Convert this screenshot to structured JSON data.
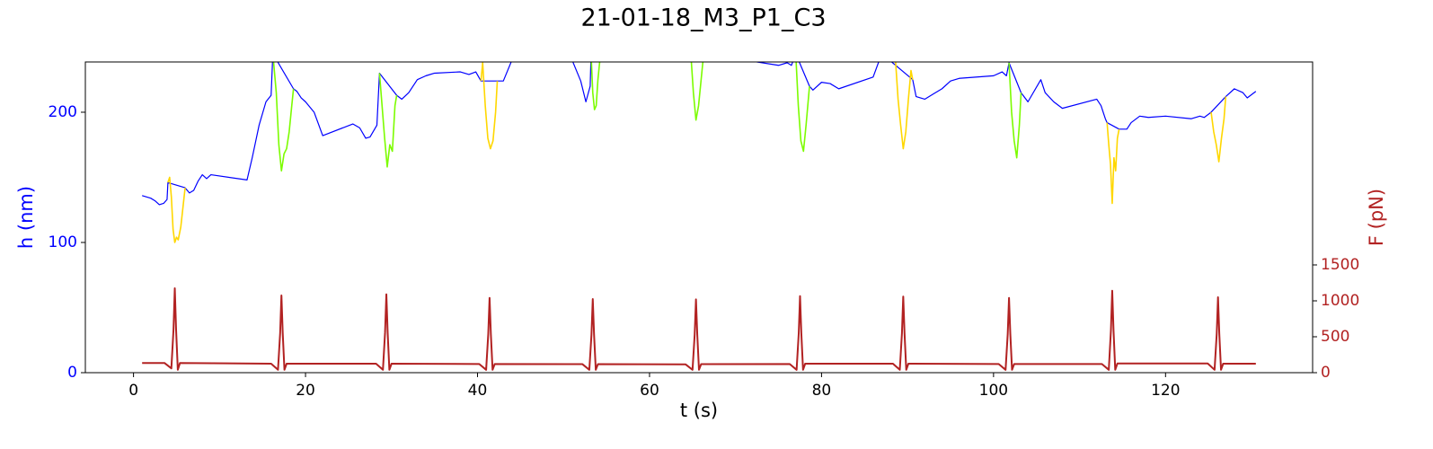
{
  "chart_data": {
    "type": "line",
    "title": "21-01-18_M3_P1_C3",
    "xlabel": "t (s)",
    "ylabel": "h (nm)",
    "y2label": "F (pN)",
    "ylabel_color": "#0000ff",
    "y2label_color": "#b22222",
    "xlim": [
      -5.6,
      137.1
    ],
    "ylim": [
      0,
      238.6
    ],
    "y2lim": [
      0,
      4325
    ],
    "xticks": [
      0,
      20,
      40,
      60,
      80,
      100,
      120
    ],
    "yticks": [
      0,
      100,
      200
    ],
    "y2ticks": [
      0,
      500,
      1000,
      1500
    ],
    "series": [
      {
        "color": "#0000ff",
        "axis": "y",
        "x": [
          1,
          2,
          2.5,
          3,
          3.5,
          3.9,
          4.0,
          6,
          6.5,
          7,
          7.5,
          8,
          8.5,
          9,
          13.2,
          13.8,
          14.6,
          15.4,
          16,
          16.2,
          18.6,
          19,
          19.5,
          20,
          21,
          22,
          25.5,
          26.3,
          27,
          27.5,
          28.3,
          28.6,
          30.6,
          31.2,
          32,
          33,
          34,
          35,
          38,
          39,
          39.8,
          40.4,
          42.3,
          43,
          44,
          50,
          51,
          52,
          52.6,
          53.1,
          53.2,
          54.3,
          64.8,
          66.3,
          75,
          76,
          76.5,
          77,
          78.6,
          79,
          80,
          81,
          82,
          86,
          87,
          90.6,
          91,
          92,
          93,
          94,
          95,
          96,
          100,
          101,
          101.5,
          101.8,
          103.2,
          104,
          105.5,
          106,
          107,
          108,
          112,
          112.5,
          113,
          113.2,
          114.6,
          115.5,
          116,
          117,
          118,
          120,
          123,
          124,
          124.5,
          125.3,
          127,
          128,
          129,
          129.5,
          130.5
        ],
        "values": [
          136,
          134,
          132,
          129,
          130,
          133,
          146,
          142,
          138,
          140,
          147,
          152,
          149,
          152,
          148,
          165,
          190,
          208,
          213,
          245,
          218,
          216,
          211,
          208,
          200,
          182,
          191,
          188,
          180,
          181,
          190,
          230,
          213,
          210,
          215,
          225,
          228,
          230,
          231,
          229,
          231,
          224,
          224,
          224,
          240,
          245,
          240,
          224,
          208,
          220,
          245,
          245,
          245,
          245,
          236,
          238,
          236,
          245,
          220,
          217,
          223,
          222,
          218,
          227,
          245,
          225,
          212,
          210,
          214,
          218,
          224,
          226,
          228,
          231,
          228,
          238,
          215,
          208,
          225,
          215,
          208,
          203,
          210,
          205,
          195,
          192,
          187,
          187,
          192,
          197,
          196,
          197,
          195,
          197,
          196,
          200,
          212,
          218,
          215,
          211,
          216
        ]
      },
      {
        "color": "#ffd700",
        "axis": "y",
        "x": [
          4.0,
          4.2,
          4.4,
          4.6,
          4.8,
          5.0,
          5.2,
          5.5,
          5.8,
          6.0
        ],
        "values": [
          146,
          150,
          135,
          110,
          100,
          104,
          102,
          112,
          130,
          142
        ]
      },
      {
        "color": "#7cfc00",
        "axis": "y",
        "x": [
          16.2,
          16.6,
          16.9,
          17.2,
          17.5,
          17.8,
          18.1,
          18.4,
          18.6
        ],
        "values": [
          245,
          215,
          175,
          155,
          168,
          172,
          185,
          205,
          218
        ]
      },
      {
        "color": "#7cfc00",
        "axis": "y",
        "x": [
          28.6,
          28.9,
          29.2,
          29.5,
          29.8,
          30.1,
          30.4,
          30.6
        ],
        "values": [
          230,
          205,
          180,
          158,
          175,
          170,
          205,
          213
        ]
      },
      {
        "color": "#ffd700",
        "axis": "y",
        "x": [
          40.4,
          40.6,
          40.9,
          41.2,
          41.5,
          41.8,
          42.1,
          42.3
        ],
        "values": [
          224,
          238,
          205,
          180,
          172,
          178,
          200,
          224
        ]
      },
      {
        "color": "#7cfc00",
        "axis": "y",
        "x": [
          53.2,
          53.4,
          53.6,
          53.8,
          54.0,
          54.3
        ],
        "values": [
          245,
          215,
          202,
          205,
          225,
          245
        ]
      },
      {
        "color": "#7cfc00",
        "axis": "y",
        "x": [
          64.8,
          65.1,
          65.4,
          65.7,
          66.0,
          66.3
        ],
        "values": [
          245,
          215,
          194,
          205,
          225,
          245
        ]
      },
      {
        "color": "#7cfc00",
        "axis": "y",
        "x": [
          77.0,
          77.3,
          77.6,
          77.9,
          78.2,
          78.6
        ],
        "values": [
          245,
          205,
          178,
          170,
          190,
          220
        ]
      },
      {
        "color": "#ffd700",
        "axis": "y",
        "x": [
          88.6,
          88.9,
          89.2,
          89.5,
          89.8,
          90.1,
          90.4,
          90.6
        ],
        "values": [
          240,
          210,
          190,
          172,
          185,
          210,
          232,
          225
        ]
      },
      {
        "color": "#7cfc00",
        "axis": "y",
        "x": [
          101.8,
          102.1,
          102.4,
          102.7,
          103.0,
          103.2
        ],
        "values": [
          238,
          200,
          178,
          165,
          190,
          215
        ]
      },
      {
        "color": "#ffd700",
        "axis": "y",
        "x": [
          113.2,
          113.4,
          113.6,
          113.8,
          114.0,
          114.2,
          114.4,
          114.6
        ],
        "values": [
          192,
          175,
          160,
          130,
          165,
          155,
          180,
          187
        ]
      },
      {
        "color": "#ffd700",
        "axis": "y",
        "x": [
          125.3,
          125.6,
          125.9,
          126.2,
          126.5,
          126.8,
          127.0
        ],
        "values": [
          200,
          185,
          175,
          162,
          180,
          195,
          212
        ]
      },
      {
        "color": "#b22222",
        "axis": "y2",
        "x": [
          1,
          3.6,
          4.4,
          4.65,
          4.8,
          4.95,
          5.15,
          5.4,
          16.0,
          16.8,
          17.05,
          17.2,
          17.35,
          17.55,
          17.8,
          28.2,
          29.0,
          29.25,
          29.4,
          29.55,
          29.75,
          30.0,
          40.2,
          41.0,
          41.25,
          41.4,
          41.55,
          41.75,
          42.0,
          52.2,
          53.0,
          53.25,
          53.4,
          53.55,
          53.75,
          54.0,
          64.2,
          65.0,
          65.25,
          65.4,
          65.55,
          65.75,
          66.0,
          76.3,
          77.1,
          77.35,
          77.5,
          77.65,
          77.85,
          78.1,
          88.3,
          89.1,
          89.35,
          89.5,
          89.65,
          89.85,
          90.1,
          100.6,
          101.4,
          101.65,
          101.8,
          101.95,
          102.15,
          102.4,
          112.6,
          113.4,
          113.65,
          113.8,
          113.95,
          114.15,
          114.4,
          124.9,
          125.7,
          125.95,
          126.1,
          126.25,
          126.45,
          126.7,
          130.5
        ],
        "values": [
          135,
          135,
          60,
          600,
          1175,
          600,
          40,
          135,
          125,
          40,
          550,
          1075,
          550,
          40,
          125,
          125,
          40,
          560,
          1090,
          560,
          40,
          125,
          120,
          40,
          540,
          1040,
          540,
          40,
          120,
          118,
          40,
          530,
          1025,
          530,
          40,
          118,
          115,
          40,
          530,
          1020,
          530,
          40,
          118,
          120,
          40,
          550,
          1065,
          550,
          40,
          125,
          125,
          40,
          550,
          1060,
          550,
          40,
          125,
          120,
          40,
          540,
          1040,
          540,
          40,
          120,
          120,
          40,
          590,
          1140,
          590,
          40,
          128,
          128,
          40,
          540,
          1050,
          540,
          40,
          125,
          125
        ]
      }
    ]
  }
}
